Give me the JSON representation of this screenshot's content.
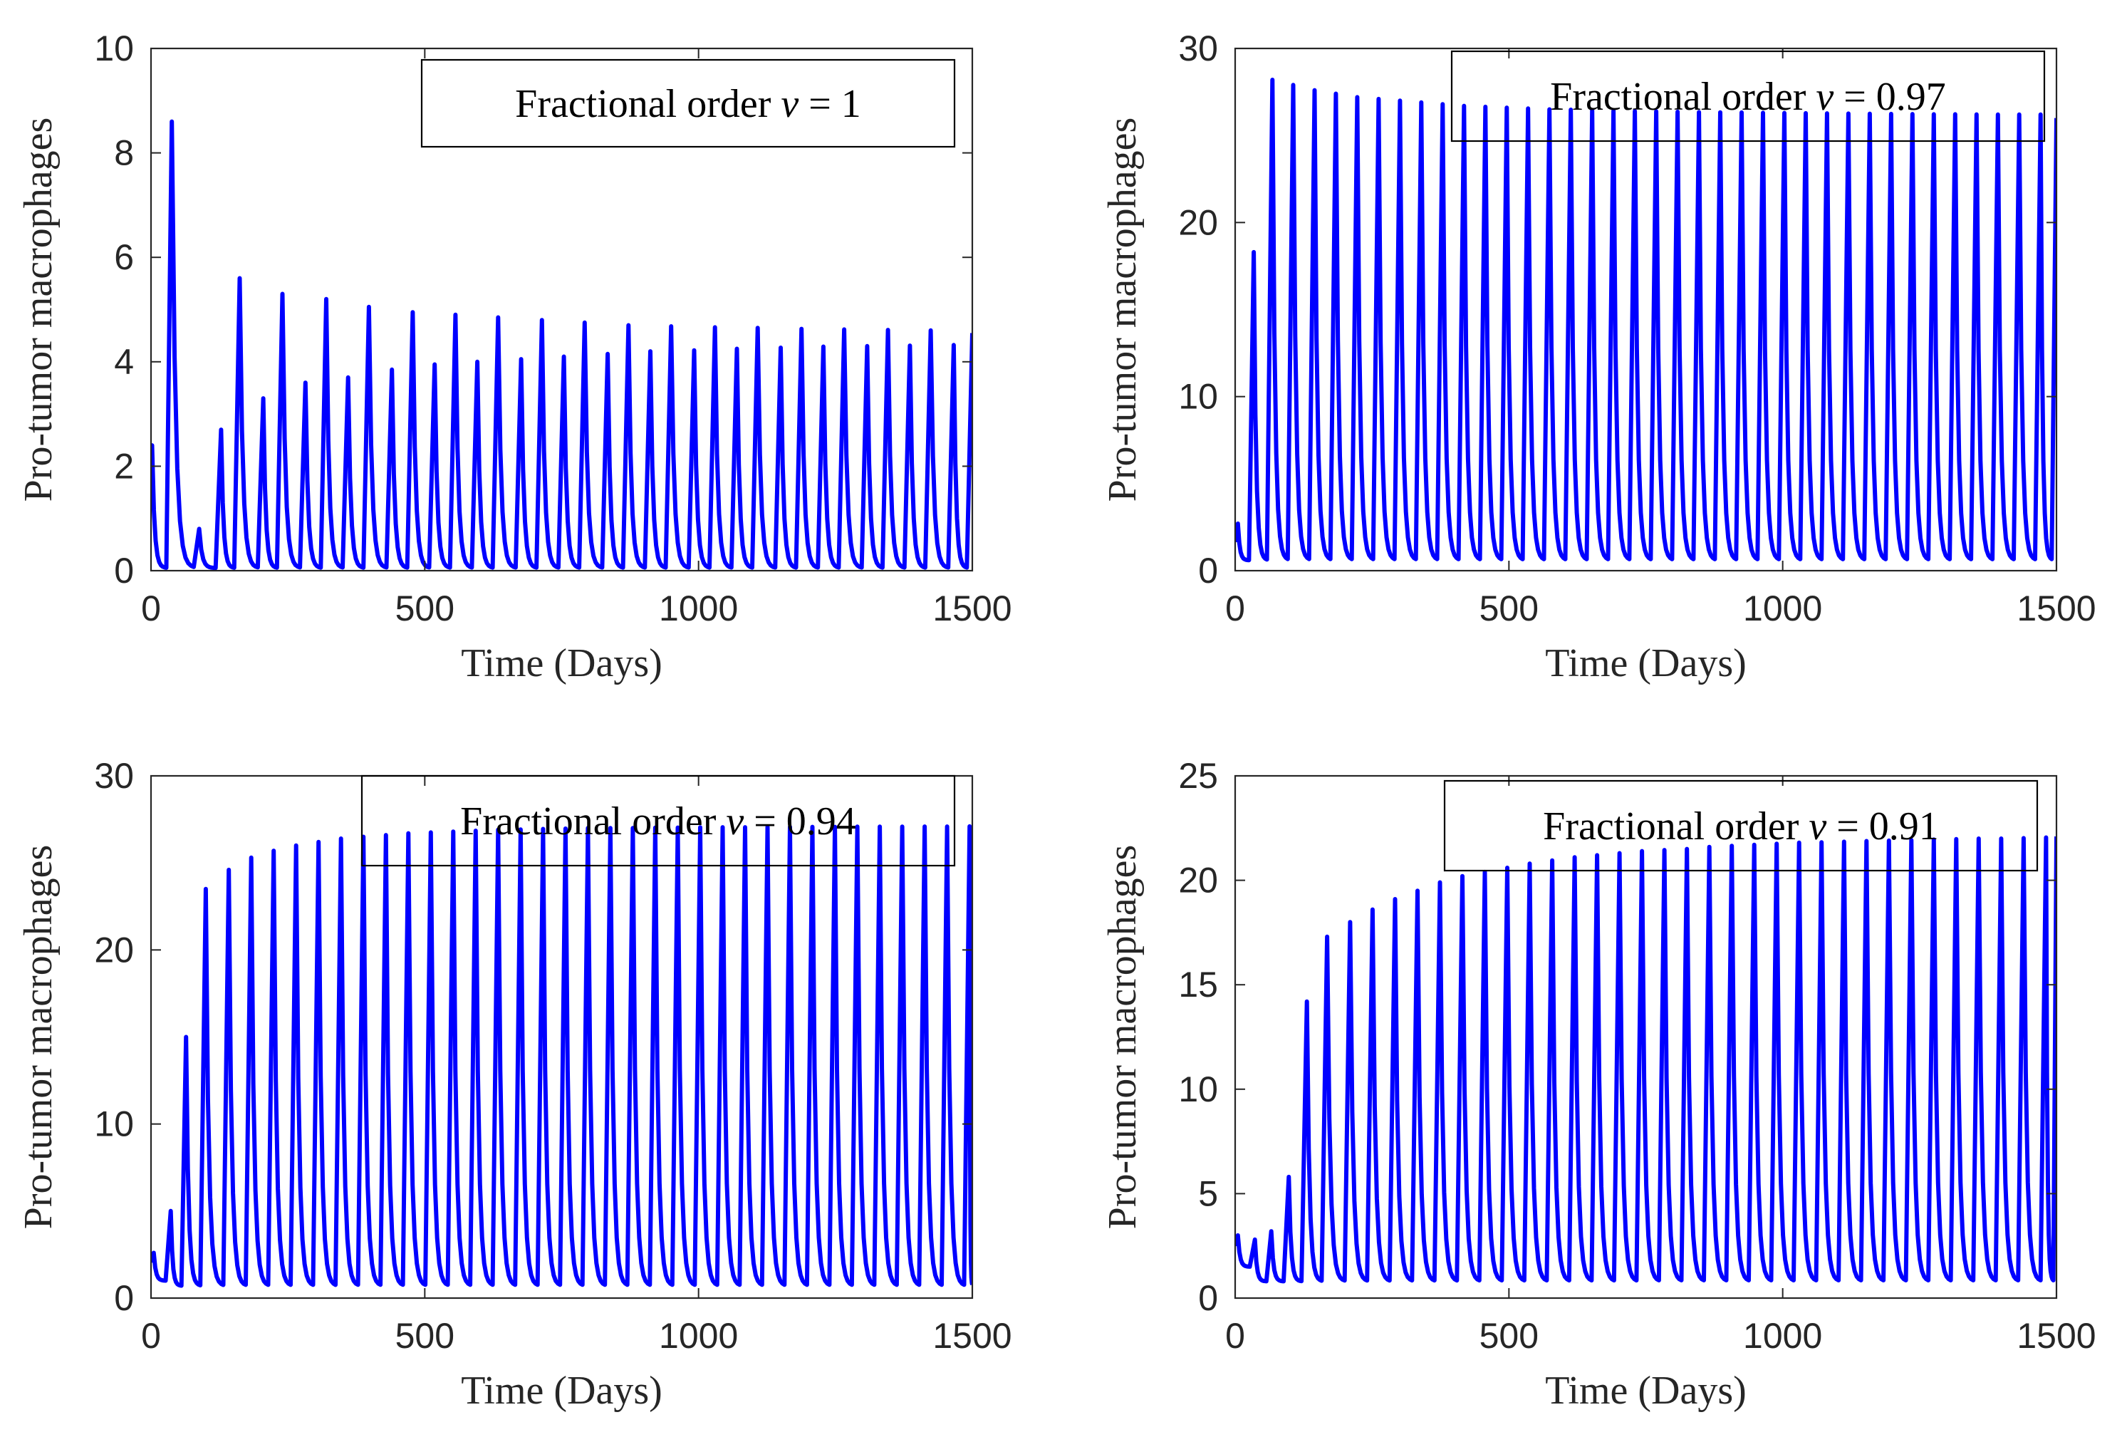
{
  "colors": {
    "series": "#0000ff",
    "axes": "#262626"
  },
  "chart_data": [
    {
      "type": "line",
      "title": "",
      "xlabel": "Time (Days)",
      "ylabel": "Pro-tumor macrophages",
      "xlim": [
        0,
        1500
      ],
      "ylim": [
        0,
        10
      ],
      "xticks": [
        "0",
        "500",
        "1000",
        "1500"
      ],
      "yticks": [
        "0",
        "2",
        "4",
        "6",
        "8",
        "10"
      ],
      "grid": false,
      "legend": {
        "placement": "top-right",
        "prefix": "Fractional order ",
        "variable": "v",
        "suffix": " = 1"
      },
      "series": [
        {
          "period": 78,
          "peaks": [
            [
              2,
              2.4
            ],
            [
              38,
              8.6
            ],
            [
              88,
              0.8
            ],
            [
              128,
              2.7
            ],
            [
              162,
              5.6
            ],
            [
              205,
              3.3
            ],
            [
              240,
              5.3
            ],
            [
              282,
              3.6
            ],
            [
              320,
              5.2
            ],
            [
              360,
              3.7
            ],
            [
              398,
              5.05
            ],
            [
              440,
              3.85
            ],
            [
              478,
              4.95
            ],
            [
              518,
              3.95
            ],
            [
              556,
              4.9
            ],
            [
              596,
              4.0
            ],
            [
              634,
              4.85
            ],
            [
              676,
              4.05
            ],
            [
              714,
              4.8
            ],
            [
              754,
              4.1
            ],
            [
              792,
              4.75
            ],
            [
              834,
              4.15
            ],
            [
              872,
              4.7
            ],
            [
              912,
              4.2
            ],
            [
              950,
              4.68
            ],
            [
              992,
              4.22
            ],
            [
              1030,
              4.66
            ],
            [
              1070,
              4.25
            ],
            [
              1108,
              4.65
            ],
            [
              1150,
              4.27
            ],
            [
              1188,
              4.63
            ],
            [
              1228,
              4.29
            ],
            [
              1266,
              4.62
            ],
            [
              1308,
              4.3
            ],
            [
              1346,
              4.61
            ],
            [
              1386,
              4.31
            ],
            [
              1424,
              4.6
            ],
            [
              1466,
              4.32
            ],
            [
              1500,
              4.55
            ]
          ],
          "troughs": [
            0.05
          ]
        }
      ]
    },
    {
      "type": "line",
      "title": "",
      "xlabel": "Time (Days)",
      "ylabel": "Pro-tumor macrophages",
      "xlim": [
        0,
        1500
      ],
      "ylim": [
        0,
        30
      ],
      "xticks": [
        "0",
        "500",
        "1000",
        "1500"
      ],
      "yticks": [
        "0",
        "10",
        "20",
        "30"
      ],
      "grid": false,
      "legend": {
        "placement": "top-right",
        "prefix": "Fractional order ",
        "variable": "v",
        "suffix": " = 0.97"
      },
      "series": [
        {
          "peaks": [
            [
              5,
              2.7
            ],
            [
              34,
              18.3
            ],
            [
              68,
              28.2
            ],
            [
              106,
              27.9
            ],
            [
              145,
              27.6
            ],
            [
              184,
              27.4
            ],
            [
              223,
              27.2
            ],
            [
              262,
              27.1
            ],
            [
              301,
              27.0
            ],
            [
              340,
              26.9
            ],
            [
              379,
              26.8
            ],
            [
              418,
              26.7
            ],
            [
              457,
              26.65
            ],
            [
              496,
              26.6
            ],
            [
              535,
              26.55
            ],
            [
              574,
              26.5
            ],
            [
              613,
              26.48
            ],
            [
              652,
              26.45
            ],
            [
              691,
              26.42
            ],
            [
              730,
              26.4
            ],
            [
              769,
              26.38
            ],
            [
              808,
              26.36
            ],
            [
              847,
              26.34
            ],
            [
              886,
              26.33
            ],
            [
              925,
              26.32
            ],
            [
              964,
              26.3
            ],
            [
              1003,
              26.29
            ],
            [
              1042,
              26.28
            ],
            [
              1081,
              26.27
            ],
            [
              1120,
              26.26
            ],
            [
              1159,
              26.25
            ],
            [
              1198,
              26.24
            ],
            [
              1237,
              26.23
            ],
            [
              1276,
              26.22
            ],
            [
              1315,
              26.22
            ],
            [
              1354,
              26.21
            ],
            [
              1393,
              26.2
            ],
            [
              1432,
              26.2
            ],
            [
              1471,
              26.2
            ],
            [
              1500,
              26.0
            ]
          ],
          "troughs": [
            0.6
          ]
        }
      ]
    },
    {
      "type": "line",
      "title": "",
      "xlabel": "Time (Days)",
      "ylabel": "Pro-tumor macrophages",
      "xlim": [
        0,
        1500
      ],
      "ylim": [
        0,
        30
      ],
      "xticks": [
        "0",
        "500",
        "1000",
        "1500"
      ],
      "yticks": [
        "0",
        "10",
        "20",
        "30"
      ],
      "grid": false,
      "legend": {
        "placement": "top-right",
        "prefix": "Fractional order ",
        "variable": "v",
        "suffix": " = 0.94"
      },
      "series": [
        {
          "peaks": [
            [
              5,
              2.6
            ],
            [
              36,
              5.0
            ],
            [
              64,
              15.0
            ],
            [
              100,
              23.5
            ],
            [
              142,
              24.6
            ],
            [
              183,
              25.3
            ],
            [
              224,
              25.7
            ],
            [
              265,
              26.0
            ],
            [
              306,
              26.2
            ],
            [
              347,
              26.4
            ],
            [
              388,
              26.5
            ],
            [
              429,
              26.6
            ],
            [
              470,
              26.7
            ],
            [
              511,
              26.75
            ],
            [
              552,
              26.8
            ],
            [
              593,
              26.85
            ],
            [
              634,
              26.9
            ],
            [
              675,
              26.92
            ],
            [
              716,
              26.95
            ],
            [
              757,
              26.97
            ],
            [
              798,
              27.0
            ],
            [
              839,
              27.0
            ],
            [
              880,
              27.0
            ],
            [
              921,
              27.02
            ],
            [
              962,
              27.03
            ],
            [
              1003,
              27.04
            ],
            [
              1044,
              27.05
            ],
            [
              1085,
              27.05
            ],
            [
              1126,
              27.06
            ],
            [
              1167,
              27.06
            ],
            [
              1208,
              27.07
            ],
            [
              1249,
              27.07
            ],
            [
              1290,
              27.08
            ],
            [
              1331,
              27.08
            ],
            [
              1372,
              27.08
            ],
            [
              1413,
              27.09
            ],
            [
              1454,
              27.09
            ],
            [
              1495,
              27.1
            ]
          ],
          "troughs": [
            1.5,
            1.0,
            0.7
          ]
        }
      ]
    },
    {
      "type": "line",
      "title": "",
      "xlabel": "Time (Days)",
      "ylabel": "Pro-tumor macrophages",
      "xlim": [
        0,
        1500
      ],
      "ylim": [
        0,
        25
      ],
      "xticks": [
        "0",
        "500",
        "1000",
        "1500"
      ],
      "yticks": [
        "0",
        "5",
        "10",
        "15",
        "20",
        "25"
      ],
      "grid": false,
      "legend": {
        "placement": "top-right",
        "prefix": "Fractional order ",
        "variable": "v",
        "suffix": " = 0.91"
      },
      "series": [
        {
          "peaks": [
            [
              5,
              3.0
            ],
            [
              36,
              2.8
            ],
            [
              66,
              3.2
            ],
            [
              98,
              5.8
            ],
            [
              131,
              14.2
            ],
            [
              168,
              17.3
            ],
            [
              210,
              18.0
            ],
            [
              251,
              18.6
            ],
            [
              292,
              19.1
            ],
            [
              333,
              19.5
            ],
            [
              374,
              19.9
            ],
            [
              415,
              20.2
            ],
            [
              456,
              20.4
            ],
            [
              497,
              20.6
            ],
            [
              538,
              20.8
            ],
            [
              579,
              20.95
            ],
            [
              620,
              21.1
            ],
            [
              661,
              21.2
            ],
            [
              702,
              21.3
            ],
            [
              743,
              21.4
            ],
            [
              784,
              21.45
            ],
            [
              825,
              21.5
            ],
            [
              866,
              21.6
            ],
            [
              907,
              21.65
            ],
            [
              948,
              21.7
            ],
            [
              989,
              21.75
            ],
            [
              1030,
              21.8
            ],
            [
              1071,
              21.82
            ],
            [
              1112,
              21.85
            ],
            [
              1153,
              21.88
            ],
            [
              1194,
              21.9
            ],
            [
              1235,
              21.92
            ],
            [
              1276,
              21.95
            ],
            [
              1317,
              21.97
            ],
            [
              1358,
              22.0
            ],
            [
              1399,
              22.0
            ],
            [
              1440,
              22.02
            ],
            [
              1481,
              22.05
            ],
            [
              1500,
              22.1
            ]
          ],
          "troughs": [
            2.0,
            1.5,
            0.8
          ]
        }
      ]
    }
  ]
}
